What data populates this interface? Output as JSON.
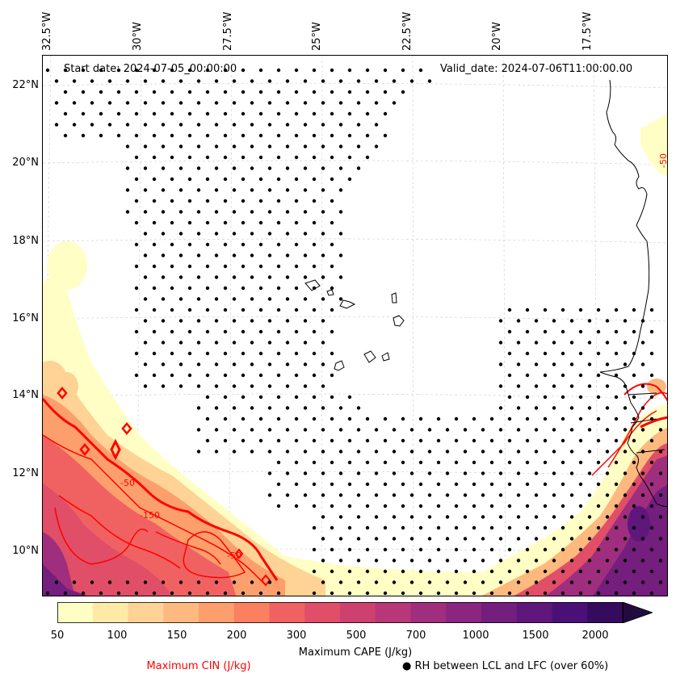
{
  "annotations": {
    "start_date": "Start date: 2024-07-05_00:00:00",
    "valid_date": "Valid_date: 2024-07-06T11:00:00.00"
  },
  "longitude_labels": [
    "32.5°W",
    "30°W",
    "27.5°W",
    "25°W",
    "22.5°W",
    "20°W",
    "17.5°W"
  ],
  "latitude_labels": [
    "22°N",
    "20°N",
    "18°N",
    "16°N",
    "14°N",
    "12°N",
    "10°N"
  ],
  "contour_labels": {
    "cin_50_west": "-50",
    "cin_150_west": "-150",
    "cin_50_east": "-50",
    "cin_50_nw": "-50"
  },
  "colorbar": {
    "title": "Maximum CAPE (J/kg)",
    "tick_labels": [
      "50",
      "100",
      "150",
      "200",
      "300",
      "500",
      "700",
      "1000",
      "1500",
      "2000"
    ],
    "colors": [
      "#fffec4",
      "#ffe9a6",
      "#fed395",
      "#fdb97e",
      "#fc9f6d",
      "#fa8060",
      "#f06262",
      "#e04e67",
      "#cc416f",
      "#b73779",
      "#a02e7f",
      "#8a2580",
      "#741e7d",
      "#5f177c",
      "#4a1077",
      "#350b5e",
      "#200d3d"
    ]
  },
  "legend": {
    "cin": "Maximum CIN (J/kg)",
    "rh": "RH between LCL and LFC (over 60%)",
    "rh_marker": "●"
  },
  "colors": {
    "cin_contour": "#ff0000",
    "coastline": "#000000",
    "gridline": "#cccccc"
  }
}
